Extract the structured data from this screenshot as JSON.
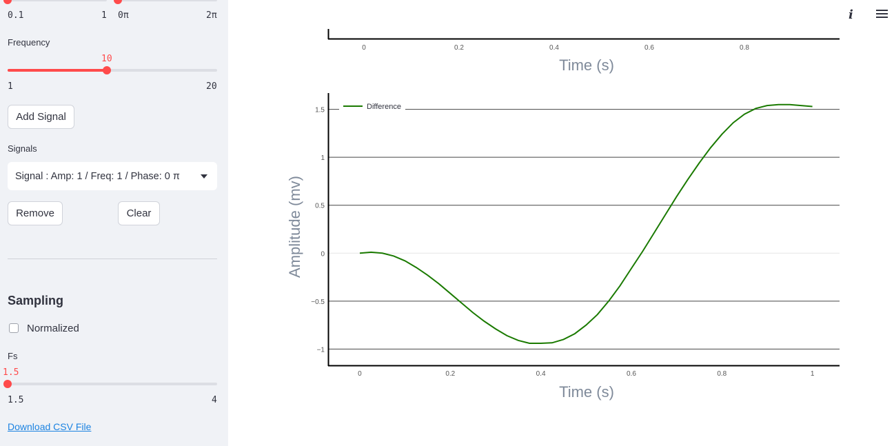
{
  "sidebar": {
    "top_slider_a": {
      "min": "0.1",
      "max": "1"
    },
    "top_slider_b": {
      "min": "0π",
      "max": "2π"
    },
    "frequency": {
      "label": "Frequency",
      "value": "10",
      "min": "1",
      "max": "20",
      "fraction": 0.474
    },
    "add_signal_label": "Add Signal",
    "signals_label": "Signals",
    "signals_selected": "Signal : Amp: 1 / Freq: 1 / Phase: 0 π",
    "remove_label": "Remove",
    "clear_label": "Clear",
    "sampling_heading": "Sampling",
    "normalized_label": "Normalized",
    "normalized_checked": false,
    "fs": {
      "label": "Fs",
      "value": "1.5",
      "min": "1.5",
      "max": "4",
      "fraction": 0.0
    },
    "download_label": "Download CSV File"
  },
  "header": {
    "info_icon": "info-icon",
    "menu_icon": "hamburger-menu-icon"
  },
  "top_chart": {
    "xlabel": "Time (s)",
    "xticks": [
      "0",
      "0.2",
      "0.4",
      "0.6",
      "0.8"
    ]
  },
  "chart_data": {
    "type": "line",
    "title": "",
    "xlabel": "Time (s)",
    "ylabel": "Amplitude (mv)",
    "xlim": [
      -0.07,
      1.06
    ],
    "ylim": [
      -1.17,
      1.67
    ],
    "xticks": [
      "0",
      "0.2",
      "0.4",
      "0.6",
      "0.8",
      "1"
    ],
    "yticks": [
      "1.5",
      "1",
      "0.5",
      "0",
      "−0.5",
      "−1"
    ],
    "ytick_values": [
      1.5,
      1,
      0.5,
      0,
      -0.5,
      -1
    ],
    "xtick_values": [
      0,
      0.2,
      0.4,
      0.6,
      0.8,
      1
    ],
    "legend_placement": "top-left",
    "grid": true,
    "series": [
      {
        "name": "Difference",
        "color": "#1a7a00",
        "x": [
          0,
          0.025,
          0.05,
          0.075,
          0.1,
          0.125,
          0.15,
          0.175,
          0.2,
          0.225,
          0.25,
          0.275,
          0.3,
          0.325,
          0.35,
          0.375,
          0.4,
          0.425,
          0.45,
          0.475,
          0.5,
          0.525,
          0.55,
          0.575,
          0.6,
          0.625,
          0.65,
          0.675,
          0.7,
          0.725,
          0.75,
          0.775,
          0.8,
          0.825,
          0.85,
          0.875,
          0.9,
          0.925,
          0.95,
          0.975,
          1.0
        ],
        "values": [
          0.0,
          0.01,
          0.0,
          -0.03,
          -0.08,
          -0.15,
          -0.23,
          -0.32,
          -0.42,
          -0.52,
          -0.62,
          -0.71,
          -0.79,
          -0.86,
          -0.91,
          -0.94,
          -0.94,
          -0.935,
          -0.9,
          -0.84,
          -0.75,
          -0.64,
          -0.5,
          -0.34,
          -0.16,
          0.02,
          0.21,
          0.4,
          0.59,
          0.77,
          0.94,
          1.1,
          1.24,
          1.36,
          1.45,
          1.51,
          1.54,
          1.55,
          1.55,
          1.54,
          1.53
        ]
      }
    ]
  }
}
